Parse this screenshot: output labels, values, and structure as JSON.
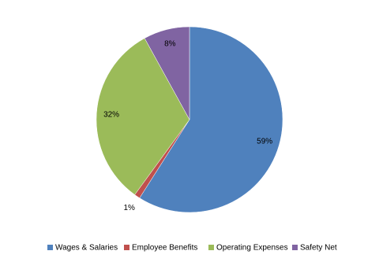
{
  "chart_data": {
    "type": "pie",
    "categories": [
      "Wages & Salaries",
      "Employee Benefits",
      "Operating Expenses",
      "Safety Net"
    ],
    "values": [
      59,
      1,
      32,
      8
    ],
    "value_labels": [
      "59%",
      "1%",
      "32%",
      "8%"
    ],
    "colors": [
      "#4f81bd",
      "#c0504d",
      "#9bbb59",
      "#8064a2"
    ]
  }
}
